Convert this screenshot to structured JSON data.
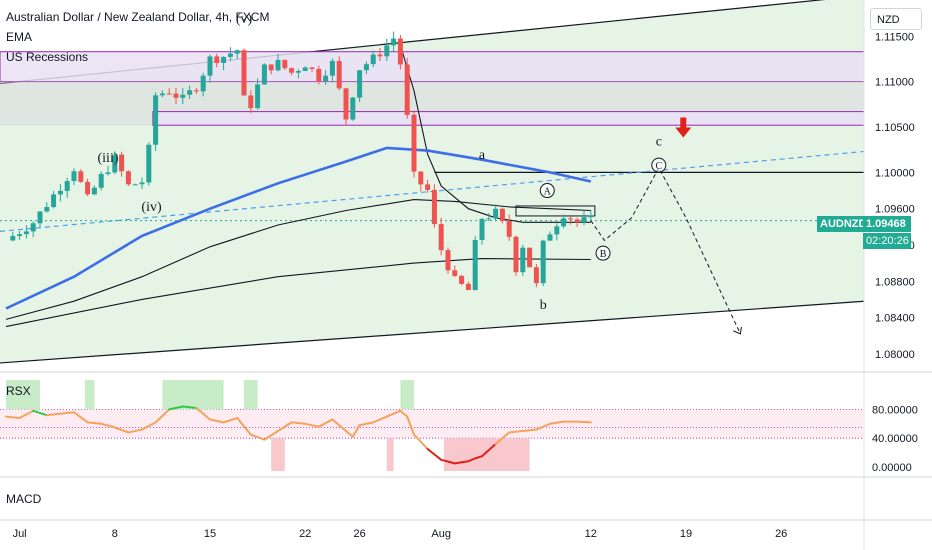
{
  "header": {
    "title": "Australian Dollar / New Zealand Dollar, 4h, FXCM",
    "indicators": [
      "EMA",
      "US Recessions"
    ],
    "currency": "NZD"
  },
  "price_tag": {
    "symbol": "AUDNZD",
    "price": "1.09468",
    "countdown": "02:20:26"
  },
  "panes": {
    "rsx_label": "RSX",
    "macd_label": "MACD"
  },
  "colors": {
    "up": "#26a69a",
    "down": "#ef5350",
    "ema_blue": "#3c6ee8",
    "band_green": "#e6f4e6",
    "zone_purple": "#e9e1f4",
    "zone_border": "#9c27b0",
    "rsx_orange": "#f5a25d",
    "rsx_green": "#2ecc40",
    "rsx_red": "#e0201b",
    "dashed_blue": "#4aa0f0",
    "price_tag": "#22ab94"
  },
  "chart_data": [
    {
      "type": "line",
      "title": "Australian Dollar / New Zealand Dollar, 4h, FXCM",
      "y_axis": {
        "min": 1.078,
        "max": 1.119,
        "ticks": [
          "1.11500",
          "1.11000",
          "1.10500",
          "1.10000",
          "1.09600",
          "1.09200",
          "1.08800",
          "1.08400",
          "1.08000"
        ]
      },
      "x_axis": {
        "ticks": [
          "Jul",
          "8",
          "15",
          "22",
          "26",
          "Aug",
          "12",
          "19",
          "26"
        ],
        "tick_days": [
          1,
          8,
          15,
          22,
          26,
          32,
          43,
          50,
          57
        ]
      },
      "price_series": {
        "name": "AUDNZD",
        "days": [
          0,
          2,
          4,
          5,
          6,
          7,
          8,
          9,
          10,
          10.5,
          11,
          12,
          13,
          14,
          15,
          16,
          17,
          17.5,
          18,
          19,
          20,
          21,
          22,
          23,
          24,
          25,
          26,
          27,
          28,
          28.5,
          29,
          29.5,
          30,
          31,
          31.5,
          32,
          33,
          34,
          34.5,
          35,
          36,
          37,
          37.5,
          38,
          39,
          39.5,
          40,
          41,
          42,
          43
        ],
        "values": [
          1.0925,
          1.0945,
          1.0985,
          1.1005,
          1.097,
          1.0995,
          1.1015,
          1.0985,
          1.099,
          1.1025,
          1.1085,
          1.109,
          1.108,
          1.1095,
          1.1125,
          1.1128,
          1.1135,
          1.108,
          1.1075,
          1.1115,
          1.112,
          1.111,
          1.112,
          1.1105,
          1.112,
          1.106,
          1.1115,
          1.1125,
          1.114,
          1.1148,
          1.112,
          1.106,
          1.0995,
          1.098,
          1.094,
          1.0915,
          1.088,
          1.087,
          1.092,
          1.095,
          1.0955,
          1.093,
          1.0895,
          1.092,
          1.0875,
          1.092,
          1.0935,
          1.0955,
          1.0945,
          1.0947
        ]
      },
      "ema_blue": {
        "days": [
          0,
          5,
          10,
          15,
          20,
          25,
          28,
          31,
          35,
          40,
          43
        ],
        "values": [
          1.085,
          1.0885,
          1.093,
          1.096,
          1.0988,
          1.1012,
          1.1027,
          1.1024,
          1.1014,
          1.1,
          1.099
        ]
      },
      "ma_black_1": {
        "days": [
          0,
          5,
          10,
          15,
          20,
          25,
          30,
          33,
          37,
          40,
          43
        ],
        "values": [
          1.0838,
          1.0858,
          1.0885,
          1.0918,
          1.0942,
          1.0958,
          1.097,
          1.0968,
          1.0962,
          1.096,
          1.0958
        ]
      },
      "ma_black_2": {
        "days": [
          0,
          10,
          20,
          30,
          35,
          43
        ],
        "values": [
          1.083,
          1.086,
          1.0885,
          1.09,
          1.0905,
          1.0904
        ]
      },
      "ma_black_3": {
        "days": [
          29,
          30,
          31,
          32,
          34,
          36,
          38,
          40,
          43
        ],
        "values": [
          1.114,
          1.109,
          1.102,
          1.0985,
          1.096,
          1.095,
          1.0945,
          1.0945,
          1.0945
        ]
      },
      "projection": {
        "days": [
          43,
          44,
          46,
          48,
          50,
          54
        ],
        "values": [
          1.0947,
          1.0925,
          1.095,
          1.1005,
          1.095,
          1.0822
        ]
      },
      "wave_labels": [
        {
          "text": "(iii)",
          "day": 7.5,
          "value": 1.1017
        },
        {
          "text": "(iv)",
          "day": 10.7,
          "value": 1.0963
        },
        {
          "text": "(v)",
          "day": 17.5,
          "value": 1.117
        },
        {
          "text": "a",
          "day": 35,
          "value": 1.102
        },
        {
          "text": "b",
          "day": 39.5,
          "value": 1.0855
        },
        {
          "text": "c",
          "day": 48,
          "value": 1.1035
        },
        {
          "text": "A",
          "day": 39.8,
          "value": 1.098,
          "circled": true
        },
        {
          "text": "B",
          "day": 43.9,
          "value": 1.0911,
          "circled": true
        },
        {
          "text": "C",
          "day": 48,
          "value": 1.1008,
          "circled": true
        }
      ]
    },
    {
      "type": "line",
      "title": "RSX",
      "y_axis": {
        "ticks": [
          "80.00000",
          "40.00000",
          "0.00000"
        ]
      },
      "series": [
        {
          "days": [
            0,
            1,
            2,
            3,
            5,
            6,
            7,
            8,
            9,
            10,
            11,
            12,
            13,
            14,
            15,
            16,
            17,
            18,
            19,
            20,
            21,
            22,
            23,
            24,
            25,
            25.5,
            26,
            27,
            28,
            29,
            29.5,
            30,
            31,
            32,
            33,
            34,
            34.5,
            35,
            36,
            37,
            38,
            39,
            40,
            41,
            42,
            43
          ],
          "values": [
            70,
            68,
            78,
            72,
            76,
            62,
            60,
            55,
            48,
            52,
            62,
            80,
            84,
            82,
            66,
            62,
            68,
            45,
            38,
            50,
            62,
            60,
            56,
            66,
            50,
            42,
            58,
            62,
            70,
            78,
            70,
            45,
            25,
            10,
            5,
            8,
            12,
            15,
            32,
            48,
            50,
            52,
            60,
            63,
            63,
            62
          ]
        }
      ]
    }
  ]
}
